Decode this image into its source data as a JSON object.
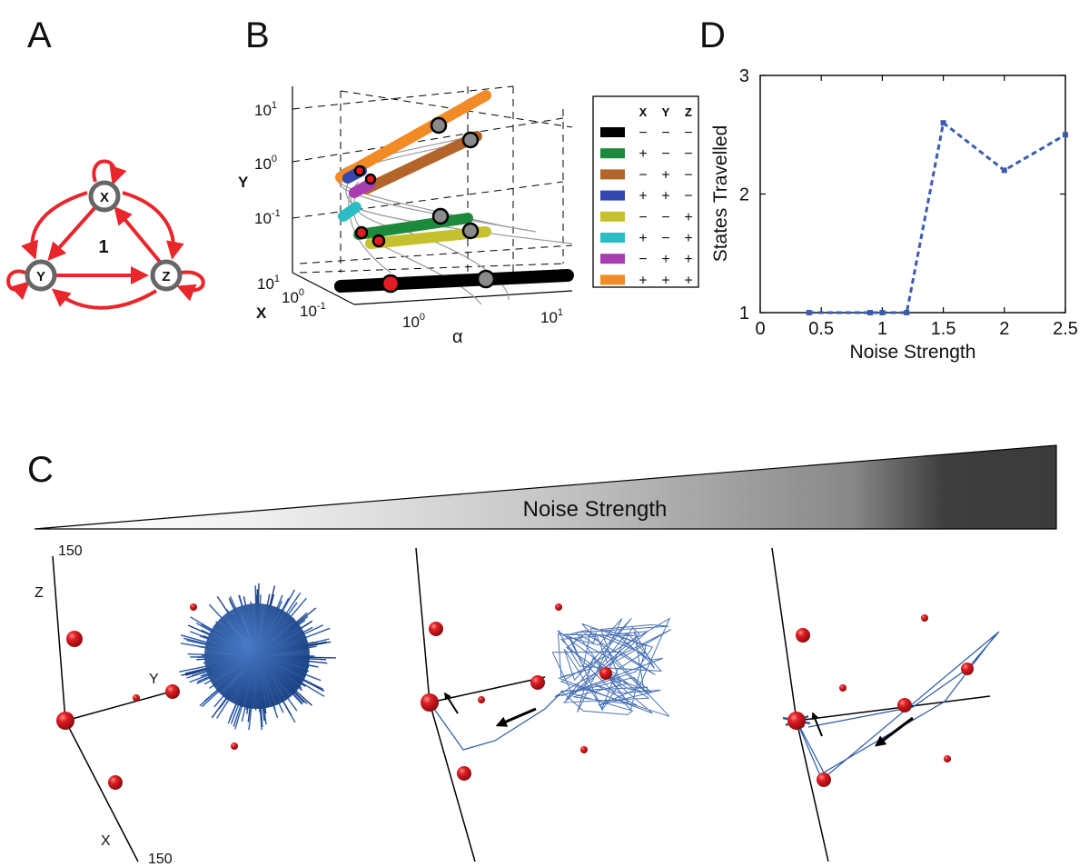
{
  "panel_labels": {
    "a": "A",
    "b": "B",
    "c": "C",
    "d": "D"
  },
  "panel_a": {
    "nodes": [
      "X",
      "Y",
      "Z"
    ],
    "center_label": "1",
    "edge_color": "#e8262b",
    "node_color": "#666666"
  },
  "panel_b": {
    "y_axis_label": "Y",
    "x_axis_label": "X",
    "alpha_label": "α",
    "y_ticks": [
      {
        "base": "10",
        "exp": "1"
      },
      {
        "base": "10",
        "exp": "0"
      },
      {
        "base": "10",
        "exp": "-1"
      }
    ],
    "x_ticks": [
      {
        "base": "10",
        "exp": "1"
      },
      {
        "base": "10",
        "exp": "0"
      },
      {
        "base": "10",
        "exp": "-1"
      }
    ],
    "alpha_ticks": [
      {
        "base": "10",
        "exp": "0"
      },
      {
        "base": "10",
        "exp": "1"
      }
    ],
    "legend": {
      "headers": [
        "X",
        "Y",
        "Z"
      ],
      "rows": [
        {
          "color": "#000000",
          "signs": [
            "−",
            "−",
            "−"
          ]
        },
        {
          "color": "#1c8a3c",
          "signs": [
            "+",
            "−",
            "−"
          ]
        },
        {
          "color": "#b3642a",
          "signs": [
            "−",
            "+",
            "−"
          ]
        },
        {
          "color": "#3447b0",
          "signs": [
            "+",
            "+",
            "−"
          ]
        },
        {
          "color": "#c4c02e",
          "signs": [
            "−",
            "−",
            "+"
          ]
        },
        {
          "color": "#2bbcc4",
          "signs": [
            "+",
            "−",
            "+"
          ]
        },
        {
          "color": "#a83db2",
          "signs": [
            "−",
            "+",
            "+"
          ]
        },
        {
          "color": "#f28a26",
          "signs": [
            "+",
            "+",
            "+"
          ]
        }
      ]
    }
  },
  "panel_c": {
    "gradient_label": "Noise Strength",
    "axis_z_label": "Z",
    "axis_y_label": "Y",
    "axis_x_label": "X",
    "tick_top": "150",
    "tick_bottom": "150",
    "sphere_color": "#d8161b",
    "trajectory_color": "#2a5aa8"
  },
  "chart_data": {
    "type": "line",
    "title": "",
    "xlabel": "Noise Strength",
    "ylabel": "States Travelled",
    "xlim": [
      0,
      2.5
    ],
    "ylim": [
      1,
      3
    ],
    "x_ticks": [
      "0",
      "0.5",
      "1",
      "1.5",
      "2",
      "2.5"
    ],
    "y_ticks": [
      "1",
      "2",
      "3"
    ],
    "series": [
      {
        "color": "#3a5bb0",
        "x": [
          0.4,
          0.9,
          1.0,
          1.2,
          1.5,
          2.0,
          2.5
        ],
        "y": [
          1,
          1,
          1,
          1,
          2.6,
          2.2,
          2.5
        ]
      }
    ]
  }
}
